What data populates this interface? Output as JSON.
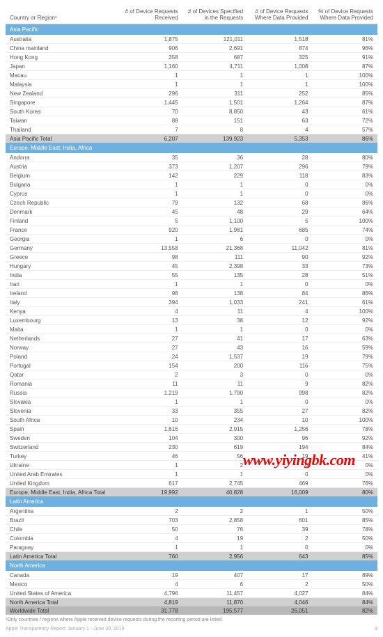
{
  "columns": [
    "Country or Region¹",
    "# of Device Requests Received",
    "# of Devices Specified in the Requests",
    "# of Device Requests Where Data Provided",
    "% of Device Requests Where Data Provided"
  ],
  "regions": [
    {
      "name": "Asia Pacific",
      "rows": [
        [
          "Australia",
          "1,875",
          "121,011",
          "1,518",
          "81%"
        ],
        [
          "China mainland",
          "906",
          "2,691",
          "874",
          "96%"
        ],
        [
          "Hong Kong",
          "358",
          "687",
          "325",
          "91%"
        ],
        [
          "Japan",
          "1,160",
          "4,711",
          "1,008",
          "87%"
        ],
        [
          "Macau",
          "1",
          "1",
          "1",
          "100%"
        ],
        [
          "Malaysia",
          "1",
          "1",
          "1",
          "100%"
        ],
        [
          "New Zealand",
          "296",
          "311",
          "252",
          "85%"
        ],
        [
          "Singapore",
          "1,445",
          "1,501",
          "1,264",
          "87%"
        ],
        [
          "South Korea",
          "70",
          "8,850",
          "43",
          "61%"
        ],
        [
          "Taiwan",
          "88",
          "151",
          "63",
          "72%"
        ],
        [
          "Thailand",
          "7",
          "8",
          "4",
          "57%"
        ]
      ],
      "total": [
        "Asia Pacific Total",
        "6,207",
        "139,923",
        "5,353",
        "86%"
      ]
    },
    {
      "name": "Europe, Middle East, India, Africa",
      "rows": [
        [
          "Andorra",
          "35",
          "36",
          "28",
          "80%"
        ],
        [
          "Austria",
          "373",
          "1,207",
          "296",
          "79%"
        ],
        [
          "Belgium",
          "142",
          "229",
          "118",
          "83%"
        ],
        [
          "Bulgaria",
          "1",
          "1",
          "0",
          "0%"
        ],
        [
          "Cyprus",
          "1",
          "1",
          "0",
          "0%"
        ],
        [
          "Czech Republic",
          "79",
          "132",
          "68",
          "86%"
        ],
        [
          "Denmark",
          "45",
          "48",
          "29",
          "64%"
        ],
        [
          "Finland",
          "5",
          "1,100",
          "5",
          "100%"
        ],
        [
          "France",
          "920",
          "1,981",
          "685",
          "74%"
        ],
        [
          "Georgia",
          "1",
          "6",
          "0",
          "0%"
        ],
        [
          "Germany",
          "13,558",
          "21,368",
          "11,042",
          "81%"
        ],
        [
          "Greece",
          "98",
          "111",
          "90",
          "92%"
        ],
        [
          "Hungary",
          "45",
          "2,398",
          "33",
          "73%"
        ],
        [
          "India",
          "55",
          "135",
          "28",
          "51%"
        ],
        [
          "Iran",
          "1",
          "1",
          "0",
          "0%"
        ],
        [
          "Ireland",
          "98",
          "138",
          "84",
          "86%"
        ],
        [
          "Italy",
          "394",
          "1,033",
          "241",
          "61%"
        ],
        [
          "Kenya",
          "4",
          "11",
          "4",
          "100%"
        ],
        [
          "Luxembourg",
          "13",
          "38",
          "12",
          "92%"
        ],
        [
          "Malta",
          "1",
          "1",
          "0",
          "0%"
        ],
        [
          "Netherlands",
          "27",
          "41",
          "17",
          "63%"
        ],
        [
          "Norway",
          "27",
          "43",
          "16",
          "59%"
        ],
        [
          "Poland",
          "24",
          "1,537",
          "19",
          "79%"
        ],
        [
          "Portugal",
          "154",
          "200",
          "116",
          "75%"
        ],
        [
          "Qatar",
          "2",
          "3",
          "0",
          "0%"
        ],
        [
          "Romania",
          "11",
          "11",
          "9",
          "82%"
        ],
        [
          "Russia",
          "1,219",
          "1,790",
          "998",
          "82%"
        ],
        [
          "Slovakia",
          "1",
          "1",
          "0",
          "0%"
        ],
        [
          "Slovenia",
          "33",
          "355",
          "27",
          "82%"
        ],
        [
          "South Africa",
          "10",
          "234",
          "10",
          "100%"
        ],
        [
          "Spain",
          "1,616",
          "2,915",
          "1,256",
          "78%"
        ],
        [
          "Sweden",
          "104",
          "300",
          "96",
          "92%"
        ],
        [
          "Switzerland",
          "230",
          "619",
          "194",
          "84%"
        ],
        [
          "Turkey",
          "46",
          "56",
          "19",
          "41%"
        ],
        [
          "Ukraine",
          "1",
          "2",
          "0",
          "0%"
        ],
        [
          "United Arab Emirates",
          "1",
          "1",
          "0",
          "0%"
        ],
        [
          "United Kingdom",
          "617",
          "2,745",
          "469",
          "76%"
        ]
      ],
      "total": [
        "Europe, Middle East, India, Africa Total",
        "19,992",
        "40,828",
        "16,009",
        "80%"
      ]
    },
    {
      "name": "Latin America",
      "rows": [
        [
          "Argentina",
          "2",
          "2",
          "1",
          "50%"
        ],
        [
          "Brazil",
          "703",
          "2,858",
          "601",
          "85%"
        ],
        [
          "Chile",
          "50",
          "76",
          "39",
          "78%"
        ],
        [
          "Colombia",
          "4",
          "19",
          "2",
          "50%"
        ],
        [
          "Paraguay",
          "1",
          "1",
          "0",
          "0%"
        ]
      ],
      "total": [
        "Latin America Total",
        "760",
        "2,956",
        "643",
        "85%"
      ]
    },
    {
      "name": "North America",
      "rows": [
        [
          "Canada",
          "19",
          "407",
          "17",
          "89%"
        ],
        [
          "Mexico",
          "4",
          "6",
          "2",
          "50%"
        ],
        [
          "United States of America",
          "4,796",
          "11,457",
          "4,027",
          "84%"
        ]
      ],
      "total": [
        "North America Total",
        "4,819",
        "11,870",
        "4,046",
        "84%"
      ]
    }
  ],
  "world_total": [
    "Worldwide Total",
    "31,778",
    "195,577",
    "26,051",
    "82%"
  ],
  "footnote": "¹Only countries / regions where Apple received device requests during the reporting period are listed.",
  "report_line": "Apple Transparency Report: January 1 - June 30, 2019",
  "page_number": "3",
  "watermark": "www.yiyingbk.com"
}
